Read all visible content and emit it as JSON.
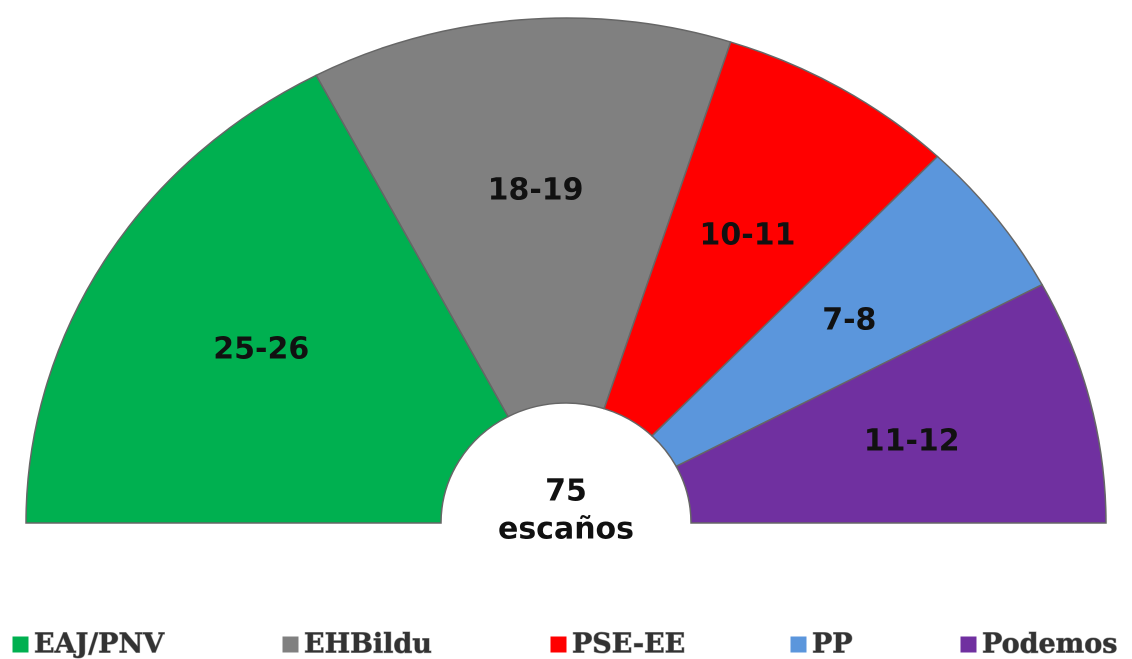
{
  "chart_data": {
    "type": "semi-donut",
    "categories": [
      "EAJ/PNV",
      "EHBildu",
      "PSE-EE",
      "PP",
      "Podemos"
    ],
    "values": [
      25.5,
      18.5,
      10.5,
      7.5,
      11.5
    ],
    "value_labels": [
      "25-26",
      "18-19",
      "10-11",
      "7-8",
      "11-12"
    ],
    "colors": [
      "#00b050",
      "#808080",
      "#ff0000",
      "#5b96dc",
      "#7030a0"
    ],
    "center_label": [
      "75",
      "escaños"
    ],
    "legend": "bottom"
  }
}
